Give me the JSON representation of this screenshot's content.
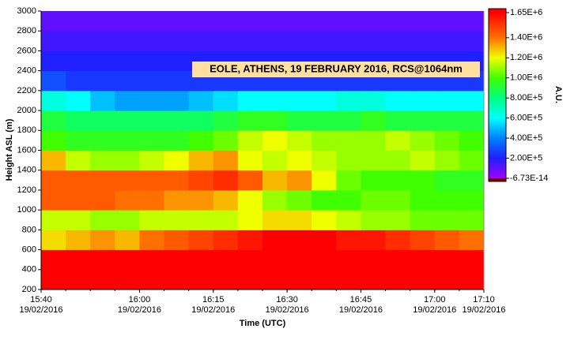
{
  "chart_data": {
    "type": "heatmap",
    "annotation": "EOLE, ATHENS, 19 FEBRUARY 2016, RCS@1064nm",
    "x_label": "Time (UTC)",
    "y_label": "Height ASL (m)",
    "colorbar_label": "A.U.",
    "xlim": [
      "2016-02-19T15:40",
      "2016-02-19T17:10"
    ],
    "xticks": [
      {
        "value": "2016-02-19T15:40",
        "label": "15:40",
        "date": "19/02/2016"
      },
      {
        "value": "2016-02-19T16:00",
        "label": "16:00",
        "date": "19/02/2016"
      },
      {
        "value": "2016-02-19T16:15",
        "label": "16:15",
        "date": "19/02/2016"
      },
      {
        "value": "2016-02-19T16:30",
        "label": "16:30",
        "date": "19/02/2016"
      },
      {
        "value": "2016-02-19T16:45",
        "label": "16:45",
        "date": "19/02/2016"
      },
      {
        "value": "2016-02-19T17:00",
        "label": "17:00",
        "date": "19/02/2016"
      },
      {
        "value": "2016-02-19T17:10",
        "label": "17:10",
        "date": "19/02/2016"
      }
    ],
    "ylim": [
      200,
      3000
    ],
    "yticks": [
      200,
      400,
      600,
      800,
      1000,
      1200,
      1400,
      1600,
      1800,
      2000,
      2200,
      2400,
      2600,
      2800,
      3000
    ],
    "zlim": [
      -6.73e-14,
      1650000
    ],
    "zticks": [
      {
        "value": 1650000,
        "label": "1.65E+6"
      },
      {
        "value": 1400000,
        "label": "1.40E+6"
      },
      {
        "value": 1200000,
        "label": "1.20E+6"
      },
      {
        "value": 1000000,
        "label": "1.00E+6"
      },
      {
        "value": 800000,
        "label": "8.00E+5"
      },
      {
        "value": 600000,
        "label": "6.00E+5"
      },
      {
        "value": 400000,
        "label": "4.00E+5"
      },
      {
        "value": 200000,
        "label": "2.00E+5"
      },
      {
        "value": -6.73e-14,
        "label": "-6.73E-14"
      }
    ],
    "colors": [
      "#ff0000",
      "#ff7000",
      "#f0ff00",
      "#40ff00",
      "#00ff80",
      "#00ffff",
      "#0080ff",
      "#2020ff",
      "#a000ff"
    ],
    "x": [
      "2016-02-19T15:40",
      "2016-02-19T15:45",
      "2016-02-19T15:50",
      "2016-02-19T15:55",
      "2016-02-19T16:00",
      "2016-02-19T16:05",
      "2016-02-19T16:10",
      "2016-02-19T16:15",
      "2016-02-19T16:20",
      "2016-02-19T16:25",
      "2016-02-19T16:30",
      "2016-02-19T16:35",
      "2016-02-19T16:40",
      "2016-02-19T16:45",
      "2016-02-19T16:50",
      "2016-02-19T16:55",
      "2016-02-19T17:00",
      "2016-02-19T17:05"
    ],
    "y": [
      200,
      400,
      600,
      800,
      1000,
      1200,
      1400,
      1600,
      1800,
      2000,
      2200,
      2400,
      2600,
      2800
    ],
    "z": [
      [
        1650000,
        1650000,
        1650000,
        1650000,
        1650000,
        1650000,
        1650000,
        1650000,
        1650000,
        1650000,
        1650000,
        1650000,
        1650000,
        1650000,
        1650000,
        1650000,
        1650000,
        1650000
      ],
      [
        1650000,
        1650000,
        1650000,
        1650000,
        1650000,
        1650000,
        1650000,
        1650000,
        1650000,
        1650000,
        1650000,
        1650000,
        1650000,
        1650000,
        1650000,
        1650000,
        1650000,
        1650000
      ],
      [
        1250000,
        1300000,
        1350000,
        1300000,
        1400000,
        1450000,
        1500000,
        1550000,
        1600000,
        1650000,
        1650000,
        1650000,
        1600000,
        1600000,
        1550000,
        1500000,
        1450000,
        1400000
      ],
      [
        1150000,
        1150000,
        1100000,
        1100000,
        1150000,
        1150000,
        1150000,
        1150000,
        1200000,
        1250000,
        1250000,
        1200000,
        1150000,
        1100000,
        1100000,
        1050000,
        1050000,
        1050000
      ],
      [
        1450000,
        1450000,
        1450000,
        1400000,
        1400000,
        1350000,
        1350000,
        1300000,
        1200000,
        1100000,
        1050000,
        1000000,
        1000000,
        1050000,
        1050000,
        1000000,
        1000000,
        1000000
      ],
      [
        1450000,
        1450000,
        1450000,
        1450000,
        1450000,
        1450000,
        1500000,
        1550000,
        1450000,
        1300000,
        1350000,
        1200000,
        1050000,
        1000000,
        1000000,
        1000000,
        950000,
        950000
      ],
      [
        1300000,
        1150000,
        1100000,
        1100000,
        1150000,
        1200000,
        1300000,
        1350000,
        1200000,
        1150000,
        1200000,
        1150000,
        1100000,
        1100000,
        1100000,
        1150000,
        1100000,
        1050000
      ],
      [
        1000000,
        950000,
        950000,
        950000,
        950000,
        950000,
        1000000,
        1050000,
        1150000,
        1200000,
        1150000,
        1100000,
        1100000,
        1100000,
        1150000,
        1100000,
        1050000,
        1000000
      ],
      [
        900000,
        850000,
        850000,
        850000,
        850000,
        850000,
        850000,
        900000,
        950000,
        950000,
        900000,
        900000,
        900000,
        950000,
        900000,
        900000,
        900000,
        900000
      ],
      [
        650000,
        600000,
        500000,
        450000,
        450000,
        450000,
        500000,
        550000,
        600000,
        600000,
        600000,
        600000,
        650000,
        650000,
        600000,
        600000,
        600000,
        600000
      ],
      [
        300000,
        250000,
        250000,
        250000,
        250000,
        250000,
        250000,
        250000,
        250000,
        250000,
        250000,
        250000,
        250000,
        250000,
        250000,
        250000,
        250000,
        250000
      ],
      [
        200000,
        200000,
        200000,
        200000,
        200000,
        200000,
        200000,
        200000,
        200000,
        200000,
        200000,
        200000,
        200000,
        200000,
        200000,
        200000,
        200000,
        200000
      ],
      [
        150000,
        150000,
        150000,
        150000,
        150000,
        150000,
        150000,
        150000,
        150000,
        150000,
        150000,
        150000,
        150000,
        150000,
        150000,
        150000,
        150000,
        150000
      ],
      [
        100000,
        100000,
        100000,
        100000,
        100000,
        100000,
        100000,
        100000,
        100000,
        100000,
        100000,
        100000,
        100000,
        100000,
        100000,
        100000,
        100000,
        100000
      ]
    ]
  }
}
